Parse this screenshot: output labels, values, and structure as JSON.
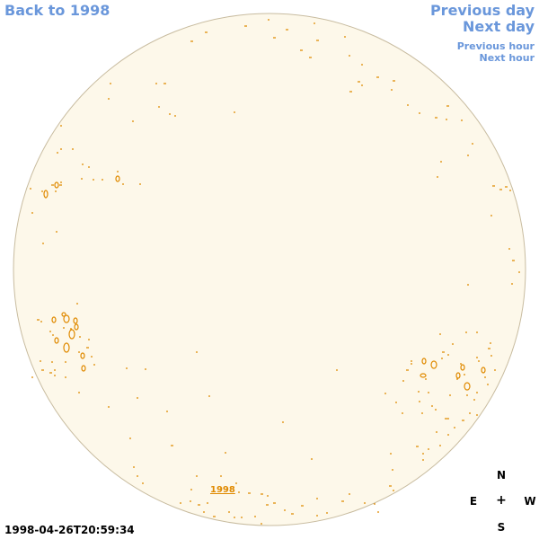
{
  "nav": {
    "back_label": "Back to 1998",
    "prev_day_label": "Previous day",
    "next_day_label": "Next day",
    "prev_hour_label": "Previous hour",
    "next_hour_label": "Next hour"
  },
  "timestamp": "1998-04-26T20:59:34",
  "disk_label": "1998",
  "compass": {
    "north": "N",
    "east": "E",
    "center": "+",
    "west": "W",
    "south": "S"
  },
  "colors": {
    "link": "#6a97db",
    "disk_fill": "#fdf8ea",
    "disk_stroke": "#c8bca0",
    "contour": "#e08a00"
  }
}
